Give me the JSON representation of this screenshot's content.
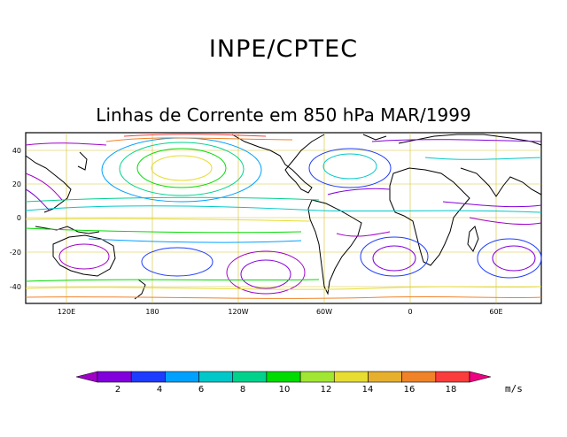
{
  "title": "INPE/CPTEC",
  "subtitle": "Linhas de Corrente em 850 hPa MAR/1999",
  "map": {
    "lat_ticks": [
      "40",
      "20",
      "0",
      "-20",
      "-40"
    ],
    "lon_ticks": [
      "120E",
      "180",
      "120W",
      "60W",
      "0",
      "60E"
    ]
  },
  "colorbar": {
    "colors": [
      "#a000c8",
      "#8200dc",
      "#1e3cff",
      "#00a0ff",
      "#00c8c8",
      "#00d28c",
      "#00dc00",
      "#a0e632",
      "#e6dc32",
      "#e6af2d",
      "#f08228",
      "#fa3c3c",
      "#f00082"
    ],
    "labels": [
      "2",
      "4",
      "6",
      "8",
      "10",
      "12",
      "14",
      "16",
      "18"
    ],
    "units": "m/s"
  }
}
